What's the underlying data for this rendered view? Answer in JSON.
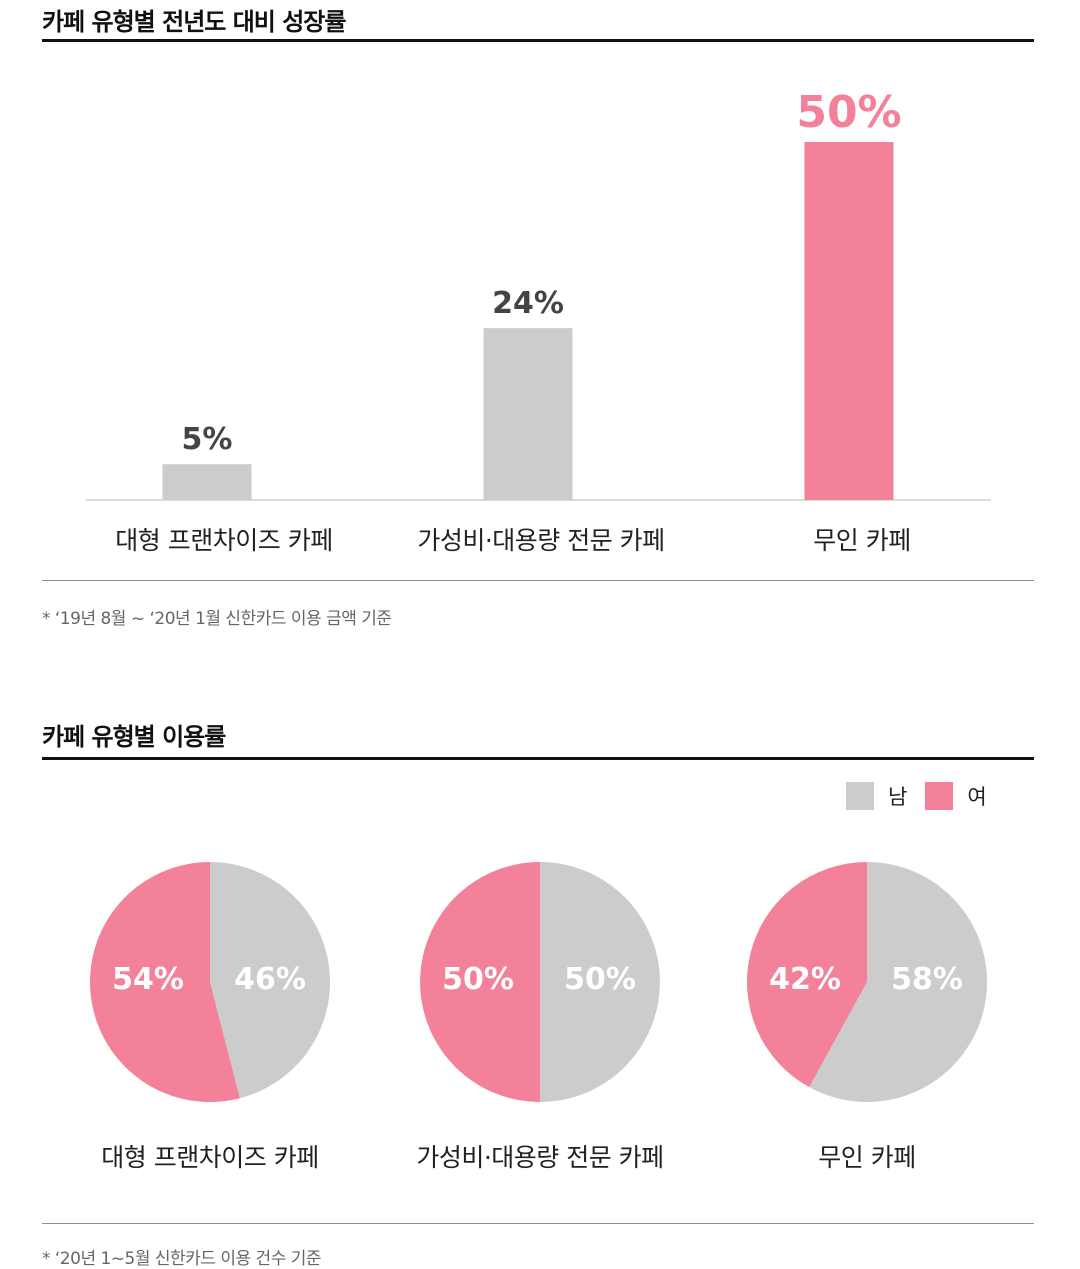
{
  "growth_section": {
    "title": "카페 유형별 전년도 대비 성장률",
    "note": "* ‘19년 8월 ~ ‘20년 1월 신한카드 이용 금액 기준"
  },
  "usage_section": {
    "title": "카페 유형별 이용률",
    "note": "* ‘20년 1~5월 신한카드 이용 건수 기준"
  },
  "colors": {
    "gray": "#cccccc",
    "pink": "#f38199",
    "dark_text": "#444444"
  },
  "chart_data": [
    {
      "type": "bar",
      "title": "카페 유형별 전년도 대비 성장률",
      "categories": [
        "대형 프랜차이즈 카페",
        "가성비·대용량 전문 카페",
        "무인 카페"
      ],
      "values": [
        5,
        24,
        50
      ],
      "value_labels": [
        "5%",
        "24%",
        "50%"
      ],
      "highlight_index": 2,
      "ylim": [
        0,
        50
      ],
      "grid": false
    },
    {
      "type": "pie",
      "title": "카페 유형별 이용률",
      "legend": [
        "남",
        "여"
      ],
      "legend_position": "top-right",
      "charts": [
        {
          "category": "대형 프랜차이즈 카페",
          "male": 46,
          "female": 54,
          "male_label": "46%",
          "female_label": "54%"
        },
        {
          "category": "가성비·대용량 전문 카페",
          "male": 50,
          "female": 50,
          "male_label": "50%",
          "female_label": "50%"
        },
        {
          "category": "무인 카페",
          "male": 58,
          "female": 42,
          "male_label": "58%",
          "female_label": "42%"
        }
      ]
    }
  ]
}
